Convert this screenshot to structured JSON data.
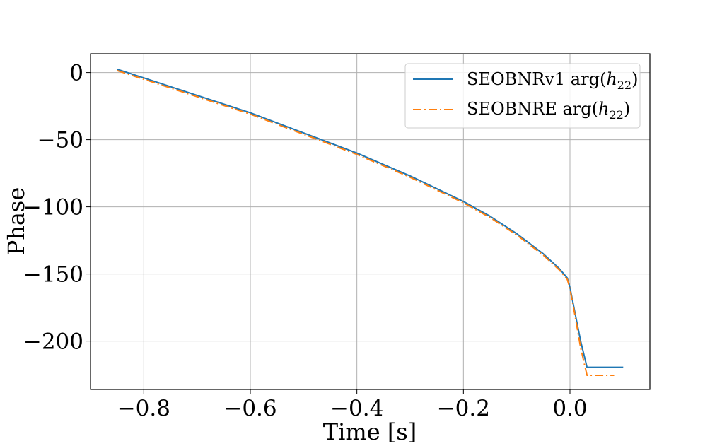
{
  "chart_data": {
    "type": "line",
    "title": "",
    "xlabel": "Time [s]",
    "ylabel": "Phase",
    "xlim": [
      -0.9,
      0.15
    ],
    "ylim": [
      -236,
      14
    ],
    "xticks": [
      -0.8,
      -0.6,
      -0.4,
      -0.2,
      0.0
    ],
    "xtick_labels": [
      "−0.8",
      "−0.6",
      "−0.4",
      "−0.2",
      "0.0"
    ],
    "yticks": [
      0,
      -50,
      -100,
      -150,
      -200
    ],
    "ytick_labels": [
      "0",
      "−50",
      "−100",
      "−150",
      "−200"
    ],
    "grid": true,
    "legend_position": "top-right",
    "series": [
      {
        "name": "SEOBNRv1 arg(h22)",
        "label_main": "SEOBNRv1 arg(",
        "label_var": "h",
        "label_sub": "22",
        "label_close": ")",
        "color": "#1f77b4",
        "linestyle": "solid",
        "x": [
          -0.85,
          -0.8,
          -0.7,
          -0.6,
          -0.5,
          -0.4,
          -0.3,
          -0.2,
          -0.15,
          -0.1,
          -0.05,
          -0.02,
          -0.005,
          0.0,
          0.01,
          0.02,
          0.032,
          0.05,
          0.1
        ],
        "y": [
          2.5,
          -4,
          -17,
          -30,
          -45,
          -60,
          -77,
          -96,
          -107,
          -120,
          -135,
          -146,
          -153,
          -160,
          -180,
          -200,
          -219.5,
          -219.5,
          -219.5
        ]
      },
      {
        "name": "SEOBNRE arg(h22)",
        "label_main": "SEOBNRE arg(",
        "label_var": "h",
        "label_sub": "22",
        "label_close": ")",
        "color": "#ff7f0e",
        "linestyle": "dashdot",
        "x": [
          -0.85,
          -0.8,
          -0.7,
          -0.6,
          -0.5,
          -0.4,
          -0.3,
          -0.2,
          -0.15,
          -0.1,
          -0.05,
          -0.02,
          -0.005,
          0.0,
          0.01,
          0.02,
          0.032,
          0.05,
          0.083
        ],
        "y": [
          1.5,
          -5,
          -18,
          -31,
          -46,
          -61,
          -78,
          -97,
          -108,
          -121,
          -136,
          -147,
          -154,
          -161,
          -182,
          -205,
          -225.5,
          -225.5,
          -225.5
        ]
      }
    ]
  }
}
